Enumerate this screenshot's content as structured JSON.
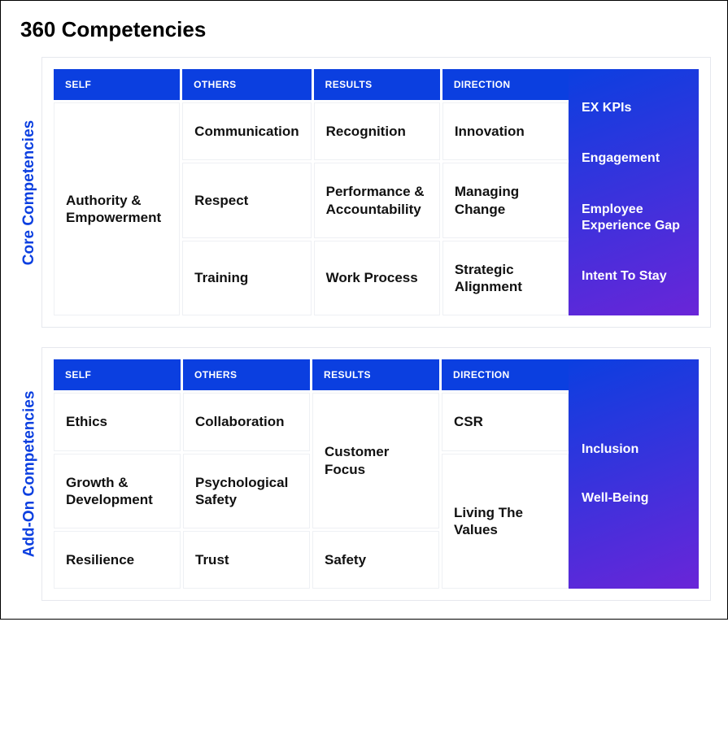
{
  "title": "360 Competencies",
  "colors": {
    "header_bg": "#0b3fe0",
    "header_text": "#ffffff",
    "cell_border": "#eef0f4",
    "panel_border": "#e6e8ee",
    "vlabel_text": "#0b3fe0",
    "kpi_gradient_from": "#0b3fe0",
    "kpi_gradient_to": "#6a25d8",
    "page_border": "#000000"
  },
  "headers": [
    "SELF",
    "OTHERS",
    "RESULTS",
    "DIRECTION"
  ],
  "core": {
    "vlabel": "Core Competencies",
    "rows": {
      "self": [
        "Authority & Empowerment"
      ],
      "others": [
        "Communication",
        "Respect",
        "Training"
      ],
      "results": [
        "Recognition",
        "Performance & Accountability",
        "Work Process"
      ],
      "direction": [
        "Innovation",
        "Managing Change",
        "Strategic Alignment"
      ]
    },
    "kpi": [
      "EX KPIs",
      "Engagement",
      "Employee Experience Gap",
      "Intent To Stay"
    ]
  },
  "addon": {
    "vlabel": "Add-On Competencies",
    "rows": {
      "self": [
        "Ethics",
        "Growth & Development",
        "Resilience"
      ],
      "others": [
        "Collaboration",
        "Psychological Safety",
        "Trust"
      ],
      "results": [
        "Customer Focus",
        "Safety"
      ],
      "direction": [
        "CSR",
        "Living The Values"
      ]
    },
    "kpi": [
      "Inclusion",
      "Well-Being"
    ]
  }
}
